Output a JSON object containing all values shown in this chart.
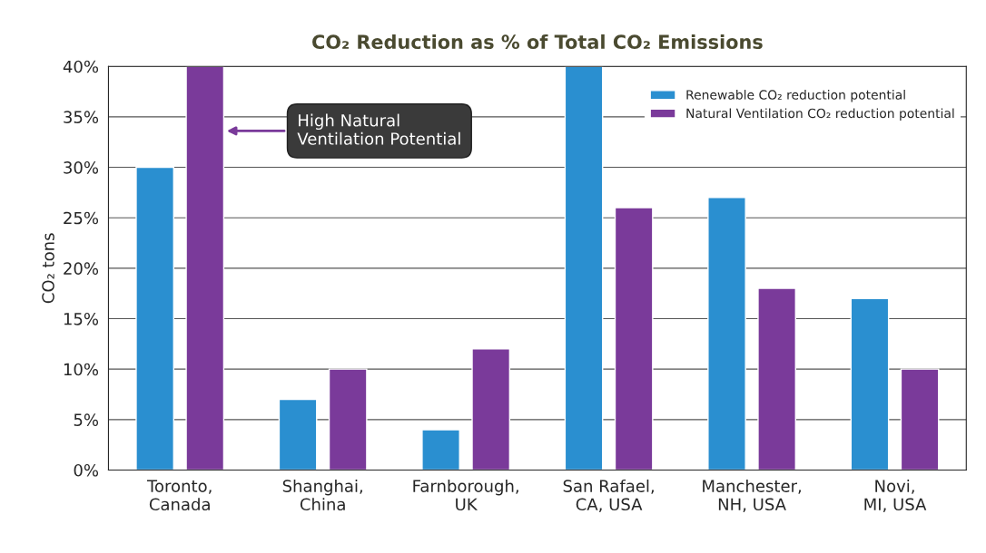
{
  "chart_data": {
    "type": "bar",
    "title": "CO₂ Reduction as % of Total CO₂ Emissions",
    "ylabel": "CO₂ tons",
    "categories": [
      "Toronto,\nCanada",
      "Shanghai,\nChina",
      "Farnborough,\nUK",
      "San Rafael,\nCA, USA",
      "Manchester,\nNH, USA",
      "Novi,\nMI, USA"
    ],
    "series": [
      {
        "name": "Renewable CO₂ reduction potential",
        "color": "#2a8fd0",
        "values": [
          30,
          7,
          4,
          40,
          27,
          17
        ]
      },
      {
        "name": "Natural Ventilation CO₂ reduction potential",
        "color": "#7a3a9a",
        "values": [
          40,
          10,
          12,
          26,
          18,
          10
        ]
      }
    ],
    "ylim": [
      0,
      40
    ],
    "yticks": [
      {
        "value": 0,
        "label": "0%"
      },
      {
        "value": 5,
        "label": "5%"
      },
      {
        "value": 10,
        "label": "10%"
      },
      {
        "value": 15,
        "label": "15%"
      },
      {
        "value": 20,
        "label": "20%"
      },
      {
        "value": 25,
        "label": "25%"
      },
      {
        "value": 30,
        "label": "30%"
      },
      {
        "value": 35,
        "label": "35%"
      },
      {
        "value": 40,
        "label": "40%"
      }
    ],
    "grid": "y",
    "legend": "top right",
    "annotations": [
      "High Natural\nVentilation Potential"
    ]
  }
}
